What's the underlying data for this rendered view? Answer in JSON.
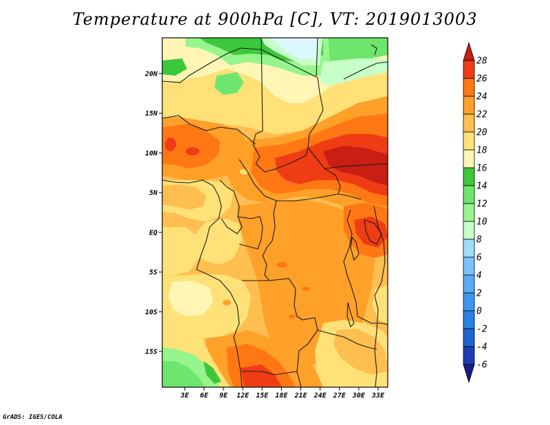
{
  "title": "Temperature at 900hPa [C], VT: 2019013003",
  "footer": "GrADS: IGES/COLA",
  "map": {
    "lon_range": [
      -0.5,
      34.5
    ],
    "lat_range": [
      -19.5,
      24.5
    ],
    "lat_ticks": [
      {
        "value": 20,
        "label": "20N"
      },
      {
        "value": 15,
        "label": "15N"
      },
      {
        "value": 10,
        "label": "10N"
      },
      {
        "value": 5,
        "label": "5N"
      },
      {
        "value": 0,
        "label": "EQ"
      },
      {
        "value": -5,
        "label": "5S"
      },
      {
        "value": -10,
        "label": "10S"
      },
      {
        "value": -15,
        "label": "15S"
      }
    ],
    "lon_ticks": [
      {
        "value": 3,
        "label": "3E"
      },
      {
        "value": 6,
        "label": "6E"
      },
      {
        "value": 9,
        "label": "9E"
      },
      {
        "value": 12,
        "label": "12E"
      },
      {
        "value": 15,
        "label": "15E"
      },
      {
        "value": 18,
        "label": "18E"
      },
      {
        "value": 21,
        "label": "21E"
      },
      {
        "value": 24,
        "label": "24E"
      },
      {
        "value": 27,
        "label": "27E"
      },
      {
        "value": 30,
        "label": "30E"
      },
      {
        "value": 33,
        "label": "33E"
      }
    ]
  },
  "colorbar": {
    "levels": [
      "-6",
      "-4",
      "-2",
      "0",
      "2",
      "4",
      "6",
      "8",
      "10",
      "12",
      "14",
      "16",
      "18",
      "20",
      "22",
      "24",
      "26",
      "28"
    ],
    "colors": [
      "#1a1a8c",
      "#1e3cb4",
      "#1e64d2",
      "#2882e6",
      "#3c96f0",
      "#5aaaf5",
      "#78c3fa",
      "#a0dcff",
      "#c8ffc8",
      "#96f58c",
      "#6ee66e",
      "#3cc83c",
      "#fff5b4",
      "#ffe178",
      "#ffbe50",
      "#ffa028",
      "#ff7814",
      "#f03c14",
      "#c81e14"
    ]
  }
}
